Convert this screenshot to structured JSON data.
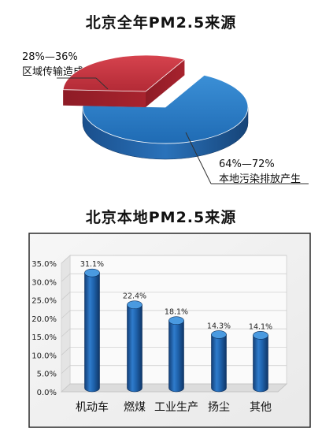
{
  "chart_data": [
    {
      "type": "pie",
      "title": "北京全年PM2.5来源",
      "slices": [
        {
          "range": "28%—36%",
          "label": "区域传输造成",
          "value": 32,
          "color": "#c8323e"
        },
        {
          "range": "64%—72%",
          "label": "本地污染排放产生",
          "value": 68,
          "color": "#2f7fc6"
        }
      ],
      "style": "3d-exploded"
    },
    {
      "type": "bar",
      "title": "北京本地PM2.5来源",
      "categories": [
        "机动车",
        "燃煤",
        "工业生产",
        "扬尘",
        "其他"
      ],
      "values": [
        31.1,
        22.4,
        18.1,
        14.3,
        14.1
      ],
      "value_labels": [
        "31.1%",
        "22.4%",
        "18.1%",
        "14.3%",
        "14.1%"
      ],
      "yticks": [
        "0.0%",
        "5.0%",
        "10.0%",
        "15.0%",
        "20.0%",
        "25.0%",
        "30.0%",
        "35.0%"
      ],
      "ylim": [
        0,
        35
      ],
      "grid": true,
      "bar_color": "#1d5fa8",
      "style": "3d-cylinder"
    }
  ]
}
